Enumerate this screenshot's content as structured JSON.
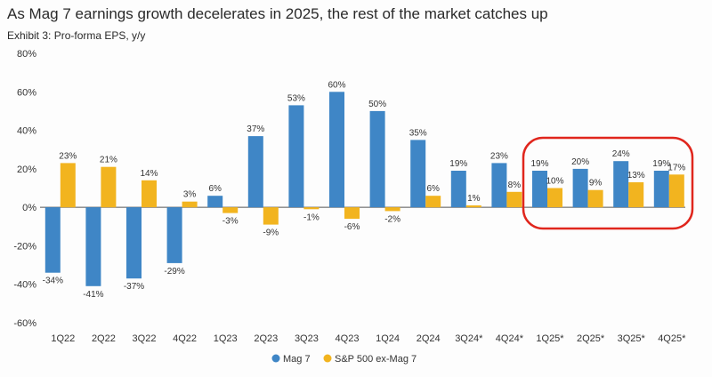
{
  "header": {
    "title": "As Mag 7 earnings growth decelerates in 2025, the rest of the market catches up",
    "subtitle": "Exhibit 3: Pro-forma EPS, y/y"
  },
  "colors": {
    "mag7": "#3f86c6",
    "sp500_ex_mag7": "#f2b41f",
    "highlight": "#e0261d",
    "zero_line": "#555555",
    "grid": "#e5e5e5"
  },
  "chart_data": {
    "type": "bar",
    "title": "As Mag 7 earnings growth decelerates in 2025, the rest of the market catches up",
    "subtitle": "Exhibit 3: Pro-forma EPS, y/y",
    "categories": [
      "1Q22",
      "2Q22",
      "3Q22",
      "4Q22",
      "1Q23",
      "2Q23",
      "3Q23",
      "4Q23",
      "1Q24",
      "2Q24",
      "3Q24*",
      "4Q24*",
      "1Q25*",
      "2Q25*",
      "3Q25*",
      "4Q25*"
    ],
    "series": [
      {
        "name": "Mag 7",
        "values": [
          -34,
          -41,
          -37,
          -29,
          6,
          37,
          53,
          60,
          50,
          35,
          19,
          23,
          19,
          20,
          24,
          19
        ],
        "labels": [
          "-34%",
          "-41%",
          "-37%",
          "-29%",
          "6%",
          "37%",
          "53%",
          "60%",
          "50%",
          "35%",
          "19%",
          "23%",
          "19%",
          "20%",
          "24%",
          "19%"
        ]
      },
      {
        "name": "S&P 500 ex-Mag 7",
        "values": [
          23,
          21,
          14,
          3,
          -3,
          -9,
          -1,
          -6,
          -2,
          6,
          1,
          8,
          10,
          9,
          13,
          17
        ],
        "labels": [
          "23%",
          "21%",
          "14%",
          "3%",
          "-3%",
          "-9%",
          "-1%",
          "-6%",
          "-2%",
          "6%",
          "1%",
          "8%",
          "10%",
          "9%",
          "13%",
          "17%"
        ]
      }
    ],
    "yticks": [
      "80%",
      "60%",
      "40%",
      "20%",
      "0%",
      "-20%",
      "-40%",
      "-60%"
    ],
    "ylim": [
      -60,
      80
    ],
    "grid": false,
    "legend_position": "bottom-center",
    "annotation": "red rounded outline around 1Q25*–4Q25*"
  }
}
